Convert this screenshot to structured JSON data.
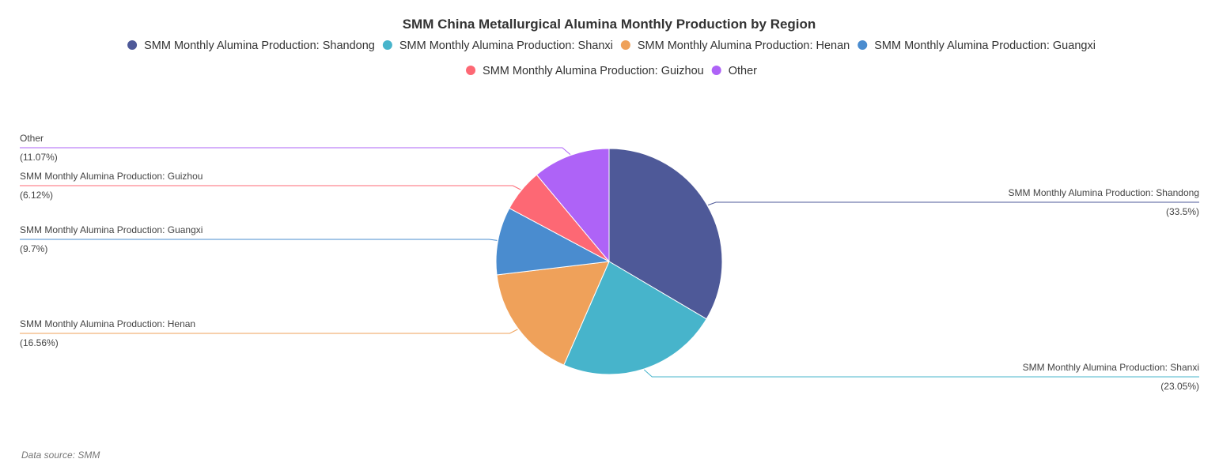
{
  "chart_data": {
    "type": "pie",
    "title": "SMM China Metallurgical Alumina Monthly Production by Region",
    "legend_position": "top",
    "slices": [
      {
        "name": "SMM Monthly Alumina Production: Shandong",
        "percent": 33.5,
        "label": "(33.5%)",
        "color": "#4e5998"
      },
      {
        "name": "SMM Monthly Alumina Production: Shanxi",
        "percent": 23.05,
        "label": "(23.05%)",
        "color": "#47b4cb"
      },
      {
        "name": "SMM Monthly Alumina Production: Henan",
        "percent": 16.56,
        "label": "(16.56%)",
        "color": "#efa15a"
      },
      {
        "name": "SMM Monthly Alumina Production: Guangxi",
        "percent": 9.7,
        "label": "(9.7%)",
        "color": "#4a8ccf"
      },
      {
        "name": "SMM Monthly Alumina Production: Guizhou",
        "percent": 6.12,
        "label": "(6.12%)",
        "color": "#fd6874"
      },
      {
        "name": "Other",
        "percent": 11.07,
        "label": "(11.07%)",
        "color": "#ae63f7"
      }
    ]
  },
  "source": "Data source:  SMM"
}
